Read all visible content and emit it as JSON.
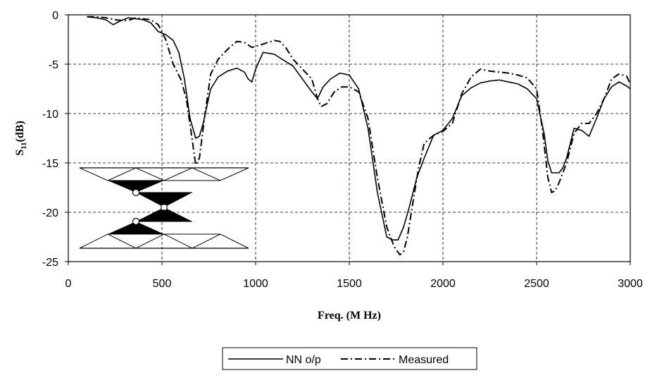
{
  "chart_data": {
    "type": "line",
    "title": "",
    "xlabel": "Freq. (M Hz)",
    "ylabel_main": "S",
    "ylabel_sub": "11",
    "ylabel_unit": "(dB)",
    "xlim": [
      0,
      3000
    ],
    "ylim": [
      -25,
      0
    ],
    "xticks": [
      0,
      500,
      1000,
      1500,
      2000,
      2500,
      3000
    ],
    "yticks": [
      0,
      -5,
      -10,
      -15,
      -20,
      -25
    ],
    "grid": true,
    "legend_position": "bottom-center",
    "series": [
      {
        "name": "NN o/p",
        "style": "solid",
        "x": [
          100,
          150,
          200,
          240,
          280,
          320,
          360,
          400,
          440,
          480,
          520,
          560,
          590,
          620,
          650,
          680,
          700,
          720,
          760,
          800,
          850,
          900,
          940,
          960,
          980,
          1000,
          1040,
          1100,
          1150,
          1200,
          1250,
          1300,
          1330,
          1360,
          1400,
          1450,
          1500,
          1550,
          1600,
          1650,
          1700,
          1730,
          1760,
          1790,
          1820,
          1860,
          1900,
          1950,
          2000,
          2050,
          2100,
          2150,
          2200,
          2250,
          2300,
          2350,
          2400,
          2450,
          2500,
          2540,
          2560,
          2580,
          2600,
          2620,
          2640,
          2660,
          2700,
          2740,
          2780,
          2820,
          2860,
          2900,
          2940,
          2980,
          3000
        ],
        "values": [
          -0.2,
          -0.3,
          -0.5,
          -1.0,
          -0.6,
          -0.3,
          -0.4,
          -0.5,
          -0.8,
          -1.7,
          -2.0,
          -2.6,
          -3.8,
          -6.5,
          -10.5,
          -12.5,
          -12.3,
          -11.0,
          -7.5,
          -6.3,
          -5.7,
          -5.4,
          -5.8,
          -6.5,
          -6.8,
          -5.5,
          -3.8,
          -4.0,
          -4.6,
          -5.2,
          -6.5,
          -7.8,
          -8.5,
          -7.3,
          -6.5,
          -5.9,
          -6.1,
          -7.5,
          -11.5,
          -18.0,
          -22.5,
          -22.8,
          -22.8,
          -21.5,
          -19.5,
          -16.5,
          -14.5,
          -12.2,
          -11.7,
          -10.5,
          -8.2,
          -7.4,
          -6.9,
          -6.7,
          -6.6,
          -6.8,
          -7.0,
          -7.5,
          -8.5,
          -12.0,
          -14.8,
          -16.0,
          -16.0,
          -16.0,
          -15.5,
          -14.5,
          -11.5,
          -11.7,
          -12.3,
          -10.5,
          -8.5,
          -7.3,
          -6.8,
          -7.2,
          -7.5
        ]
      },
      {
        "name": "Measured",
        "style": "dashdot",
        "x": [
          100,
          150,
          200,
          250,
          300,
          330,
          360,
          400,
          440,
          480,
          520,
          560,
          600,
          630,
          660,
          680,
          700,
          730,
          760,
          800,
          850,
          880,
          900,
          940,
          980,
          1000,
          1050,
          1100,
          1130,
          1160,
          1200,
          1250,
          1300,
          1330,
          1350,
          1380,
          1420,
          1460,
          1500,
          1550,
          1600,
          1650,
          1700,
          1740,
          1770,
          1790,
          1810,
          1840,
          1870,
          1900,
          1950,
          2000,
          2050,
          2100,
          2150,
          2200,
          2250,
          2300,
          2350,
          2400,
          2450,
          2500,
          2530,
          2560,
          2580,
          2600,
          2620,
          2640,
          2660,
          2700,
          2740,
          2780,
          2820,
          2860,
          2900,
          2940,
          2980,
          3000
        ],
        "values": [
          -0.2,
          -0.2,
          -0.3,
          -0.5,
          -0.6,
          -0.5,
          -0.3,
          -0.4,
          -0.5,
          -1.0,
          -2.5,
          -5.0,
          -6.5,
          -8.5,
          -12.5,
          -15.2,
          -14.5,
          -10.0,
          -6.0,
          -4.5,
          -3.5,
          -3.0,
          -2.7,
          -2.8,
          -3.3,
          -3.2,
          -2.9,
          -2.6,
          -2.7,
          -3.3,
          -4.5,
          -5.5,
          -6.5,
          -8.5,
          -9.3,
          -9.0,
          -7.8,
          -7.3,
          -7.3,
          -7.8,
          -10.5,
          -16.5,
          -21.5,
          -23.5,
          -24.3,
          -24.0,
          -22.5,
          -19.0,
          -15.5,
          -13.0,
          -12.2,
          -11.8,
          -11.0,
          -8.0,
          -6.3,
          -5.5,
          -5.7,
          -5.8,
          -5.9,
          -6.1,
          -6.4,
          -7.5,
          -11.5,
          -16.5,
          -18.0,
          -17.8,
          -17.0,
          -16.0,
          -15.0,
          -12.0,
          -11.0,
          -11.0,
          -10.0,
          -8.5,
          -6.5,
          -6.0,
          -6.2,
          -7.0
        ]
      }
    ],
    "inset": "antenna-geometry-diagram"
  }
}
